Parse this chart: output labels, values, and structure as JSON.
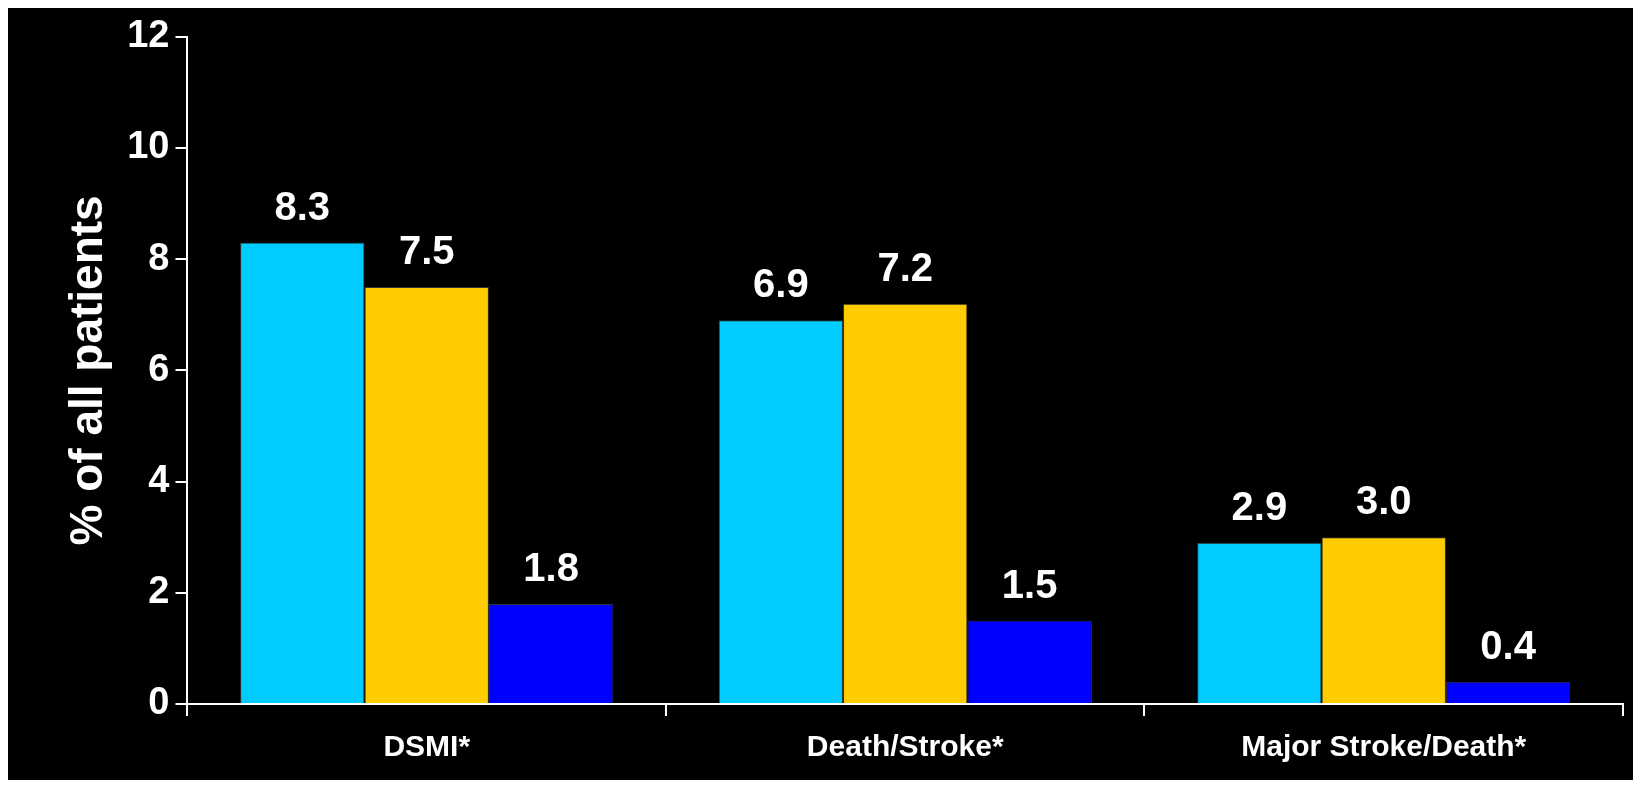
{
  "chart_data": {
    "type": "bar",
    "ylabel": "% of all patients",
    "categories": [
      "DSMI*",
      "Death/Stroke*",
      "Major Stroke/Death*"
    ],
    "series": [
      {
        "color": "#00ccff",
        "values": [
          8.3,
          6.9,
          2.9
        ],
        "value_labels": [
          "8.3",
          "6.9",
          "2.9"
        ]
      },
      {
        "color": "#ffcc00",
        "values": [
          7.5,
          7.2,
          3.0
        ],
        "value_labels": [
          "7.5",
          "7.2",
          "3.0"
        ]
      },
      {
        "color": "#0000ff",
        "values": [
          1.8,
          1.5,
          0.4
        ],
        "value_labels": [
          "1.8",
          "1.5",
          "0.4"
        ]
      }
    ],
    "ylim": [
      0,
      12
    ],
    "yticks": [
      0,
      2,
      4,
      6,
      8,
      10,
      12
    ],
    "grid": false,
    "legend": false
  }
}
